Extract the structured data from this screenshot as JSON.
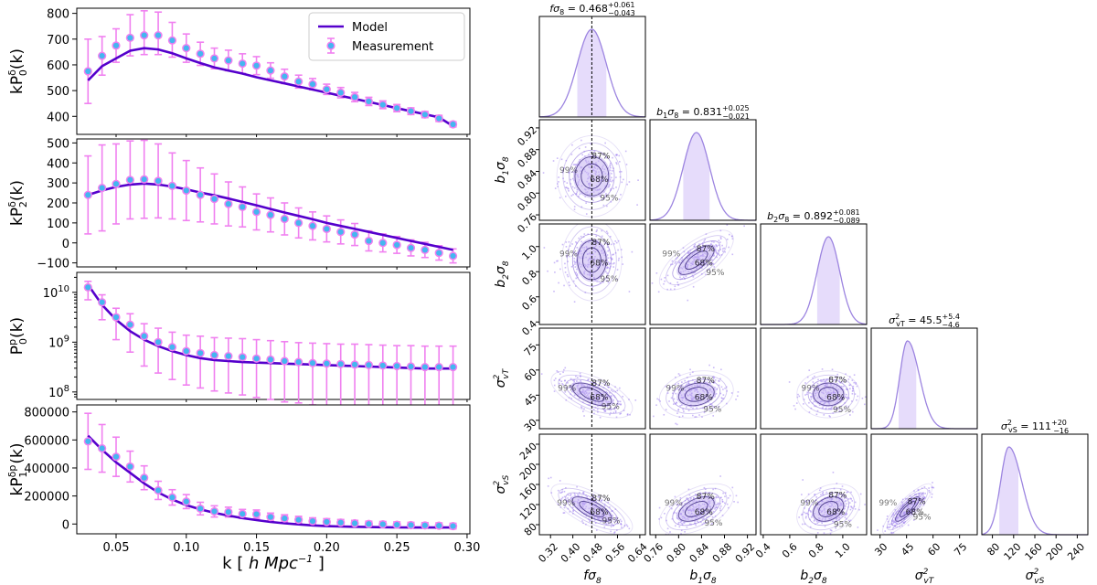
{
  "chart_data": [
    {
      "type": "line",
      "panel": "P0 monopole",
      "ylabel": "kP_0^δ(k)",
      "xlim": [
        0.022,
        0.302
      ],
      "ylim": [
        330,
        820
      ],
      "yticks": [
        400,
        500,
        600,
        700,
        800
      ],
      "ytick_labels": [
        "400",
        "500",
        "600",
        "700",
        "800"
      ],
      "x": [
        0.03,
        0.04,
        0.05,
        0.06,
        0.07,
        0.08,
        0.09,
        0.1,
        0.11,
        0.12,
        0.13,
        0.14,
        0.15,
        0.16,
        0.17,
        0.18,
        0.19,
        0.2,
        0.21,
        0.22,
        0.23,
        0.24,
        0.25,
        0.26,
        0.27,
        0.28,
        0.29
      ],
      "series": [
        {
          "name": "Model",
          "color": "#5500cc",
          "values": [
            540,
            595,
            625,
            655,
            665,
            660,
            645,
            625,
            607,
            590,
            578,
            566,
            552,
            540,
            528,
            516,
            504,
            492,
            480,
            468,
            456,
            444,
            432,
            420,
            408,
            396,
            362
          ]
        },
        {
          "name": "Measurement",
          "color": "#44b6f0",
          "values": [
            575,
            635,
            675,
            705,
            715,
            715,
            695,
            665,
            643,
            625,
            617,
            605,
            597,
            578,
            555,
            535,
            525,
            505,
            492,
            475,
            458,
            445,
            432,
            420,
            407,
            392,
            369
          ],
          "err_low": [
            125,
            75,
            65,
            70,
            75,
            75,
            65,
            55,
            45,
            40,
            40,
            38,
            35,
            30,
            28,
            25,
            22,
            20,
            20,
            18,
            16,
            15,
            14,
            13,
            12,
            12,
            10
          ],
          "err_high": [
            125,
            75,
            65,
            90,
            95,
            90,
            70,
            55,
            45,
            40,
            40,
            38,
            35,
            30,
            28,
            25,
            22,
            20,
            20,
            18,
            16,
            15,
            14,
            13,
            12,
            12,
            10
          ]
        }
      ],
      "legend": {
        "items": [
          "Model",
          "Measurement"
        ],
        "position": "top-right"
      }
    },
    {
      "type": "line",
      "panel": "P2 quadrupole",
      "ylabel": "kP_2^δ(k)",
      "xlim": [
        0.022,
        0.302
      ],
      "ylim": [
        -120,
        520
      ],
      "yticks": [
        -100,
        0,
        100,
        200,
        300,
        400,
        500
      ],
      "ytick_labels": [
        "−100",
        "0",
        "100",
        "200",
        "300",
        "400",
        "500"
      ],
      "x": [
        0.03,
        0.04,
        0.05,
        0.06,
        0.07,
        0.08,
        0.09,
        0.1,
        0.11,
        0.12,
        0.13,
        0.14,
        0.15,
        0.16,
        0.17,
        0.18,
        0.19,
        0.2,
        0.21,
        0.22,
        0.23,
        0.24,
        0.25,
        0.26,
        0.27,
        0.28,
        0.29
      ],
      "series": [
        {
          "name": "Model",
          "color": "#5500cc",
          "values": [
            240,
            262,
            280,
            292,
            297,
            292,
            282,
            268,
            252,
            238,
            222,
            205,
            188,
            170,
            152,
            135,
            118,
            100,
            85,
            70,
            55,
            40,
            25,
            10,
            -5,
            -20,
            -35
          ]
        },
        {
          "name": "Measurement",
          "color": "#44b6f0",
          "values": [
            240,
            275,
            295,
            315,
            318,
            310,
            285,
            262,
            240,
            220,
            195,
            180,
            155,
            140,
            120,
            100,
            85,
            70,
            55,
            42,
            10,
            0,
            -10,
            -25,
            -35,
            -50,
            -65
          ],
          "err_low": [
            195,
            215,
            200,
            195,
            195,
            185,
            165,
            150,
            135,
            125,
            110,
            100,
            90,
            85,
            80,
            75,
            70,
            65,
            60,
            55,
            50,
            45,
            42,
            40,
            38,
            36,
            35
          ],
          "err_high": [
            195,
            215,
            200,
            195,
            195,
            185,
            165,
            150,
            135,
            125,
            110,
            100,
            90,
            85,
            80,
            75,
            70,
            65,
            60,
            55,
            50,
            45,
            42,
            40,
            38,
            36,
            35
          ]
        }
      ]
    },
    {
      "type": "line",
      "panel": "Pp0 log",
      "ylabel": "P_0^p(k)",
      "yscale": "log",
      "xlim": [
        0.022,
        0.302
      ],
      "ylim_log10": [
        7.85,
        10.4
      ],
      "yticks_log10": [
        8,
        9,
        10
      ],
      "ytick_labels": [
        "10^8",
        "10^9",
        "10^10"
      ],
      "x": [
        0.03,
        0.04,
        0.05,
        0.06,
        0.07,
        0.08,
        0.09,
        0.1,
        0.11,
        0.12,
        0.13,
        0.14,
        0.15,
        0.16,
        0.17,
        0.18,
        0.19,
        0.2,
        0.21,
        0.22,
        0.23,
        0.24,
        0.25,
        0.26,
        0.27,
        0.28,
        0.29
      ],
      "series": [
        {
          "name": "Model",
          "color": "#5500cc",
          "values_log10": [
            10.15,
            9.75,
            9.45,
            9.22,
            9.05,
            8.92,
            8.82,
            8.74,
            8.68,
            8.64,
            8.62,
            8.6,
            8.59,
            8.58,
            8.57,
            8.56,
            8.55,
            8.54,
            8.53,
            8.52,
            8.51,
            8.5,
            8.49,
            8.48,
            8.47,
            8.47,
            8.47
          ]
        },
        {
          "name": "Measurement",
          "color": "#44b6f0",
          "values_log10": [
            10.1,
            9.8,
            9.5,
            9.35,
            9.12,
            9.0,
            8.9,
            8.82,
            8.78,
            8.74,
            8.72,
            8.7,
            8.67,
            8.65,
            8.62,
            8.6,
            8.58,
            8.57,
            8.56,
            8.55,
            8.54,
            8.53,
            8.52,
            8.51,
            8.5,
            8.5,
            8.5
          ],
          "err_low": [
            0.25,
            0.35,
            0.45,
            0.55,
            0.6,
            0.62,
            0.65,
            0.68,
            0.7,
            0.72,
            0.74,
            0.76,
            0.78,
            0.8,
            0.82,
            0.82,
            0.84,
            0.84,
            0.85,
            0.86,
            0.86,
            0.87,
            0.87,
            0.88,
            0.88,
            0.88,
            0.88
          ],
          "err_high": [
            0.12,
            0.15,
            0.18,
            0.22,
            0.25,
            0.28,
            0.3,
            0.32,
            0.34,
            0.35,
            0.36,
            0.37,
            0.38,
            0.38,
            0.39,
            0.39,
            0.4,
            0.4,
            0.4,
            0.41,
            0.41,
            0.41,
            0.41,
            0.42,
            0.42,
            0.42,
            0.42
          ]
        }
      ]
    },
    {
      "type": "line",
      "panel": "P1 cross",
      "ylabel": "kP_1^δp(k)",
      "xlabel": "k  [ h Mpc^-1 ]",
      "xlim": [
        0.022,
        0.302
      ],
      "xticks": [
        0.05,
        0.1,
        0.15,
        0.2,
        0.25,
        0.3
      ],
      "xtick_labels": [
        "0.05",
        "0.10",
        "0.15",
        "0.20",
        "0.25",
        "0.30"
      ],
      "ylim": [
        -70000,
        850000
      ],
      "yticks": [
        0,
        200000,
        400000,
        600000,
        800000
      ],
      "ytick_labels": [
        "0",
        "200000",
        "400000",
        "600000",
        "800000"
      ],
      "x": [
        0.03,
        0.04,
        0.05,
        0.06,
        0.07,
        0.08,
        0.09,
        0.1,
        0.11,
        0.12,
        0.13,
        0.14,
        0.15,
        0.16,
        0.17,
        0.18,
        0.19,
        0.2,
        0.21,
        0.22,
        0.23,
        0.24,
        0.25,
        0.26,
        0.27,
        0.28,
        0.29
      ],
      "series": [
        {
          "name": "Model",
          "color": "#5500cc",
          "values": [
            630000,
            530000,
            440000,
            365000,
            290000,
            225000,
            175000,
            135000,
            105000,
            80000,
            60000,
            42000,
            28000,
            15000,
            5000,
            -3000,
            -10000,
            -15000,
            -18000,
            -20000,
            -22000,
            -23000,
            -24000,
            -25000,
            -25000,
            -25000,
            -25000
          ]
        },
        {
          "name": "Measurement",
          "color": "#44b6f0",
          "values": [
            590000,
            540000,
            480000,
            410000,
            330000,
            240000,
            190000,
            160000,
            110000,
            90000,
            85000,
            72000,
            70000,
            50000,
            40000,
            30000,
            20000,
            15000,
            10000,
            5000,
            0,
            -2000,
            -5000,
            -8000,
            -10000,
            -12000,
            -15000
          ],
          "err_low": [
            200000,
            170000,
            140000,
            110000,
            85000,
            65000,
            55000,
            50000,
            45000,
            40000,
            35000,
            32000,
            30000,
            28000,
            26000,
            25000,
            24000,
            23000,
            22000,
            21000,
            20000,
            20000,
            20000,
            20000,
            20000,
            20000,
            20000
          ],
          "err_high": [
            200000,
            170000,
            140000,
            110000,
            85000,
            65000,
            55000,
            50000,
            45000,
            40000,
            35000,
            32000,
            30000,
            28000,
            26000,
            25000,
            24000,
            23000,
            22000,
            21000,
            20000,
            20000,
            20000,
            20000,
            20000,
            20000,
            20000
          ]
        }
      ]
    },
    {
      "type": "corner",
      "params": [
        "fσ8",
        "b1σ8",
        "b2σ8",
        "σ²vT",
        "σ²vS"
      ],
      "axis_labels": {
        "p0": {
          "base": "fσ",
          "sub": "8"
        },
        "p1": {
          "base": "b",
          "sub1": "1",
          "mid": "σ",
          "sub": "8"
        },
        "p2": {
          "base": "b",
          "sub1": "2",
          "mid": "σ",
          "sub": "8"
        },
        "p3": {
          "base": "σ",
          "sup": "2",
          "sub": "vT"
        },
        "p4": {
          "base": "σ",
          "sup": "2",
          "sub": "vS"
        }
      },
      "titles": [
        {
          "label": "fσ8",
          "value": "0.468",
          "plus": "+0.061",
          "minus": "−0.043"
        },
        {
          "label": "b1σ8",
          "value": "0.831",
          "plus": "+0.025",
          "minus": "−0.021"
        },
        {
          "label": "b2σ8",
          "value": "0.892",
          "plus": "+0.081",
          "minus": "−0.089"
        },
        {
          "label": "σ²vT",
          "value": "45.5",
          "plus": "+5.4",
          "minus": "−4.6"
        },
        {
          "label": "σ²vS",
          "value": "111",
          "plus": "+20",
          "minus": "−16"
        }
      ],
      "ranges": [
        [
          0.28,
          0.66
        ],
        [
          0.75,
          0.935
        ],
        [
          0.38,
          1.18
        ],
        [
          25,
          85
        ],
        [
          60,
          260
        ]
      ],
      "ticks": [
        {
          "values": [
            0.32,
            0.4,
            0.48,
            0.56,
            0.64
          ],
          "labels": [
            "0.32",
            "0.40",
            "0.48",
            "0.56",
            "0.64"
          ]
        },
        {
          "values": [
            0.76,
            0.8,
            0.84,
            0.88,
            0.92
          ],
          "labels": [
            "0.76",
            "0.80",
            "0.84",
            "0.88",
            "0.92"
          ]
        },
        {
          "values": [
            0.4,
            0.6,
            0.8,
            1.0
          ],
          "labels": [
            "0.4",
            "0.6",
            "0.8",
            "1.0"
          ]
        },
        {
          "values": [
            30,
            45,
            60,
            75
          ],
          "labels": [
            "30",
            "45",
            "60",
            "75"
          ]
        },
        {
          "values": [
            80,
            120,
            160,
            200,
            240
          ],
          "labels": [
            "80",
            "120",
            "160",
            "200",
            "240"
          ]
        }
      ],
      "means": [
        0.468,
        0.831,
        0.892,
        45.5,
        111
      ],
      "sigmas": [
        0.052,
        0.023,
        0.085,
        5.0,
        18
      ],
      "correlations": {
        "0-1": 0.0,
        "0-2": 0.0,
        "1-2": 0.7,
        "0-3": -0.6,
        "1-3": 0.2,
        "2-3": 0.0,
        "0-4": -0.7,
        "1-4": 0.5,
        "2-4": 0.3,
        "3-4": 0.85
      },
      "contour_labels": [
        "68%",
        "87%",
        "95%",
        "99%"
      ],
      "truth_value_fσ8": 0.468,
      "colors": {
        "fill": "#c4b2f2",
        "line": "#9c84e0",
        "dark": "#4a3a8c",
        "dot": "#9f7ff0",
        "band": "#e6dcfb"
      }
    }
  ]
}
